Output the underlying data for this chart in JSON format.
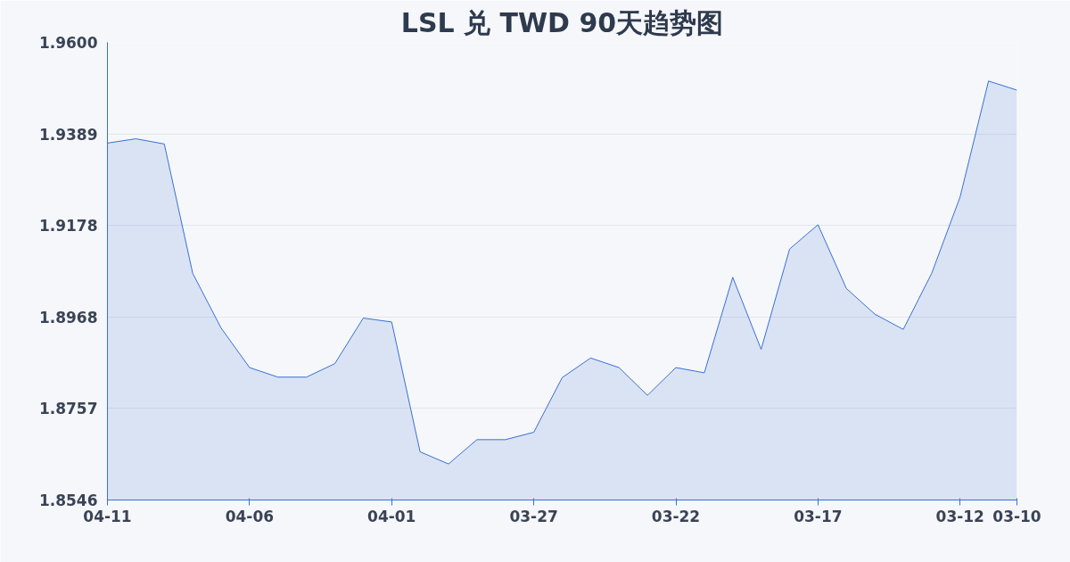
{
  "chart_data": {
    "type": "area",
    "title": "LSL 兑 TWD 90天趋势图",
    "categories": [
      "04-11",
      null,
      null,
      null,
      null,
      "04-06",
      null,
      null,
      null,
      null,
      "04-01",
      null,
      null,
      null,
      null,
      "03-27",
      null,
      null,
      null,
      null,
      "03-22",
      null,
      null,
      null,
      null,
      "03-17",
      null,
      null,
      null,
      null,
      "03-12",
      null,
      "03-10"
    ],
    "series": [
      {
        "color": "#3b6fd4",
        "values": [
          1.9368,
          1.9378,
          1.9366,
          1.9068,
          1.8942,
          1.8851,
          1.8829,
          1.8829,
          1.886,
          1.8965,
          1.8956,
          1.8657,
          1.8629,
          1.8685,
          1.8685,
          1.8702,
          1.8828,
          1.8873,
          1.8851,
          1.8787,
          1.8851,
          1.8839,
          1.9059,
          1.8893,
          1.9124,
          1.918,
          1.9033,
          1.8974,
          1.8939,
          1.9068,
          1.9244,
          1.9511,
          1.949
        ]
      }
    ],
    "ylim": [
      1.8546,
      1.96
    ],
    "yticks": [
      {
        "value": 1.8546,
        "label": "1.8546"
      },
      {
        "value": 1.8757,
        "label": "1.8757"
      },
      {
        "value": 1.8968,
        "label": "1.8968"
      },
      {
        "value": 1.9178,
        "label": "1.9178"
      },
      {
        "value": 1.9389,
        "label": "1.9389"
      },
      {
        "value": 1.96,
        "label": "1.9600"
      }
    ],
    "grid": "y",
    "marker": "none",
    "line_style": "solid"
  }
}
